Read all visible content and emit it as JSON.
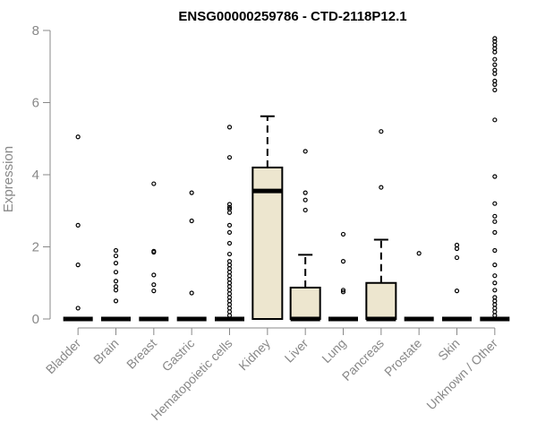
{
  "chart_data": {
    "type": "boxplot",
    "title": "ENSG00000259786 - CTD-2118P12.1",
    "xlabel": "",
    "ylabel": "Expression",
    "ylim": [
      0,
      8
    ],
    "yticks": [
      "0",
      "2",
      "4",
      "6",
      "8"
    ],
    "grid": false,
    "legend": "none",
    "colors": {
      "box_fill": "#ede6cf",
      "stroke": "#000000",
      "axis": "#888888"
    },
    "categories": [
      "Bladder",
      "Brain",
      "Breast",
      "Gastric",
      "Hematopoietic cells",
      "Kidney",
      "Liver",
      "Lung",
      "Pancreas",
      "Prostate",
      "Skin",
      "Unknown / Other"
    ],
    "boxes": [
      {
        "category": "Bladder",
        "q1": 0,
        "median": 0,
        "q3": 0,
        "whisker_low": 0,
        "whisker_high": 0,
        "outliers": [
          5.05,
          2.6,
          1.5,
          0.3
        ]
      },
      {
        "category": "Brain",
        "q1": 0,
        "median": 0,
        "q3": 0,
        "whisker_low": 0,
        "whisker_high": 0,
        "outliers": [
          1.9,
          1.75,
          1.55,
          1.3,
          1.05,
          0.9,
          0.8,
          0.5
        ]
      },
      {
        "category": "Breast",
        "q1": 0,
        "median": 0,
        "q3": 0,
        "whisker_low": 0,
        "whisker_high": 0,
        "outliers": [
          3.75,
          1.88,
          1.85,
          1.22,
          0.95,
          0.78
        ]
      },
      {
        "category": "Gastric",
        "q1": 0,
        "median": 0,
        "q3": 0,
        "whisker_low": 0,
        "whisker_high": 0,
        "outliers": [
          3.5,
          2.72,
          0.72
        ]
      },
      {
        "category": "Hematopoietic cells",
        "q1": 0,
        "median": 0,
        "q3": 0,
        "whisker_low": 0,
        "whisker_high": 0,
        "outliers": [
          5.32,
          4.48,
          3.18,
          3.1,
          3.05,
          2.95,
          2.6,
          2.4,
          2.1,
          1.8,
          1.6,
          1.5,
          1.4,
          1.3,
          1.2,
          1.1,
          1.0,
          0.9,
          0.8,
          0.7,
          0.6,
          0.5,
          0.4,
          0.3,
          0.2,
          0.1
        ]
      },
      {
        "category": "Kidney",
        "q1": 0,
        "median": 3.55,
        "q3": 4.2,
        "whisker_low": 0,
        "whisker_high": 5.62,
        "outliers": []
      },
      {
        "category": "Liver",
        "q1": 0,
        "median": 0,
        "q3": 0.87,
        "whisker_low": 0,
        "whisker_high": 1.78,
        "outliers": [
          4.65,
          3.5,
          3.3,
          3.02
        ]
      },
      {
        "category": "Lung",
        "q1": 0,
        "median": 0,
        "q3": 0,
        "whisker_low": 0,
        "whisker_high": 0,
        "outliers": [
          2.35,
          1.6,
          0.8,
          0.75
        ]
      },
      {
        "category": "Pancreas",
        "q1": 0,
        "median": 0,
        "q3": 1.0,
        "whisker_low": 0,
        "whisker_high": 2.2,
        "outliers": [
          5.2,
          3.65
        ]
      },
      {
        "category": "Prostate",
        "q1": 0,
        "median": 0,
        "q3": 0,
        "whisker_low": 0,
        "whisker_high": 0,
        "outliers": [
          1.82
        ]
      },
      {
        "category": "Skin",
        "q1": 0,
        "median": 0,
        "q3": 0,
        "whisker_low": 0,
        "whisker_high": 0,
        "outliers": [
          2.05,
          1.95,
          1.7,
          0.78
        ]
      },
      {
        "category": "Unknown / Other",
        "q1": 0,
        "median": 0,
        "q3": 0,
        "whisker_low": 0,
        "whisker_high": 0,
        "outliers": [
          7.78,
          7.7,
          7.6,
          7.5,
          7.4,
          7.2,
          7.05,
          6.9,
          6.8,
          6.6,
          6.5,
          6.35,
          5.52,
          3.95,
          3.2,
          2.85,
          2.7,
          2.4,
          1.9,
          1.5,
          1.2,
          1.0,
          0.8,
          0.6,
          0.5,
          0.4,
          0.3,
          0.2,
          0.1
        ]
      }
    ]
  }
}
